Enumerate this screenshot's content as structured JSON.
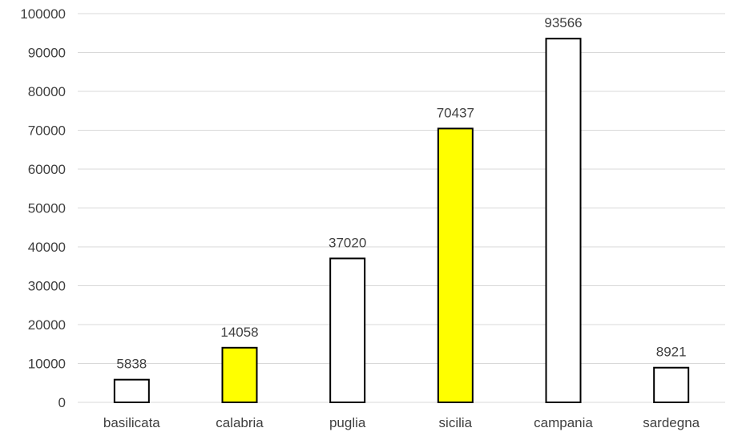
{
  "chart_data": {
    "type": "bar",
    "title": "",
    "xlabel": "",
    "ylabel": "",
    "categories": [
      "basilicata",
      "calabria",
      "puglia",
      "sicilia",
      "campania",
      "sardegna"
    ],
    "values": [
      5838,
      14058,
      37020,
      70437,
      93566,
      8921
    ],
    "data_labels": [
      "5838",
      "14058",
      "37020",
      "70437",
      "93566",
      "8921"
    ],
    "bar_colors": [
      "#ffffff",
      "#ffff00",
      "#ffffff",
      "#ffff00",
      "#ffffff",
      "#ffffff"
    ],
    "bar_outline": "#000000",
    "ylim": [
      0,
      100000
    ],
    "y_ticks": [
      0,
      10000,
      20000,
      30000,
      40000,
      50000,
      60000,
      70000,
      80000,
      90000,
      100000
    ],
    "y_tick_labels": [
      "0",
      "10000",
      "20000",
      "30000",
      "40000",
      "50000",
      "60000",
      "70000",
      "80000",
      "90000",
      "100000"
    ],
    "grid": true,
    "legend": "none"
  }
}
